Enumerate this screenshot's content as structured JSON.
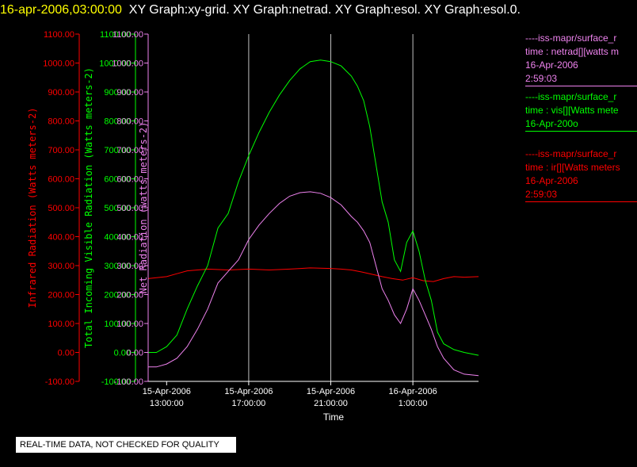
{
  "header": {
    "timestamp": "16-apr-2006,03:00:00",
    "titles": "XY Graph:xy-grid.  XY Graph:netrad.  XY Graph:esol.  XY Graph:esol.0."
  },
  "notice": "REAL-TIME DATA, NOT CHECKED FOR QUALITY",
  "colors": {
    "infrared": "#ff0000",
    "visible": "#00ff00",
    "net": "#ee82ee",
    "grid": "#c0c0c0",
    "frame": "#ffffff"
  },
  "legend": [
    {
      "color": "#ee82ee",
      "lines": [
        "----iss-mapr/surface_r",
        "time : netrad[][watts m",
        "16-Apr-2006",
        "2:59:03"
      ]
    },
    {
      "color": "#00ff00",
      "lines": [
        "----iss-mapr/surface_r",
        "time : vis[][Watts mete",
        "16-Apr-200o"
      ]
    },
    {
      "color": "#ff0000",
      "lines": [
        "----iss-mapr/surface_r",
        "time : ir[][Watts meters",
        "16-Apr-2006",
        "2:59:03"
      ]
    }
  ],
  "chart_data": {
    "type": "line",
    "xlabel": "Time",
    "x_ticks": [
      {
        "hours": 13,
        "label": [
          "15-Apr-2006",
          "13:00:00"
        ]
      },
      {
        "hours": 17,
        "label": [
          "15-Apr-2006",
          "17:00:00"
        ]
      },
      {
        "hours": 21,
        "label": [
          "15-Apr-2006",
          "21:00:00"
        ]
      },
      {
        "hours": 25,
        "label": [
          "16-Apr-2006",
          "1:00:00"
        ]
      }
    ],
    "xlim_hours": [
      12.1,
      28.2
    ],
    "grid_x_hours": [
      17,
      21,
      25
    ],
    "ylim": [
      -100,
      1100
    ],
    "y_ticks": [
      "-100.00",
      "0.00",
      "100.00",
      "200.00",
      "300.00",
      "400.00",
      "500.00",
      "600.00",
      "700.00",
      "800.00",
      "900.00",
      "1000.00",
      "1100.00"
    ],
    "axes": [
      {
        "name": "infrared",
        "label": "Infrared Radiation (Watts meters-2)",
        "color": "#ff0000"
      },
      {
        "name": "visible",
        "label": "Total Incoming Visible Radiation (Watts meters-2)",
        "color": "#00ff00"
      },
      {
        "name": "net",
        "label": "Net Radiation (watts meters-2)",
        "color": "#ee82ee"
      }
    ],
    "series": [
      {
        "key": "infrared",
        "color": "#ff0000",
        "x": [
          12.1,
          12.5,
          13.0,
          13.5,
          14.0,
          15.0,
          16.0,
          17.0,
          18.0,
          19.0,
          20.0,
          21.0,
          21.5,
          22.0,
          22.5,
          23.0,
          23.5,
          24.0,
          24.5,
          25.0,
          25.5,
          26.0,
          26.5,
          27.0,
          27.5,
          28.2
        ],
        "y": [
          255,
          258,
          262,
          272,
          282,
          288,
          285,
          288,
          285,
          288,
          292,
          290,
          288,
          285,
          278,
          270,
          262,
          255,
          250,
          258,
          248,
          245,
          255,
          262,
          260,
          262
        ]
      },
      {
        "key": "visible",
        "color": "#00ff00",
        "x": [
          12.1,
          12.5,
          13.0,
          13.5,
          14.0,
          14.5,
          15.0,
          15.5,
          16.0,
          16.5,
          17.0,
          17.5,
          18.0,
          18.5,
          19.0,
          19.5,
          20.0,
          20.5,
          21.0,
          21.5,
          22.0,
          22.3,
          22.6,
          22.9,
          23.2,
          23.5,
          23.8,
          24.1,
          24.4,
          24.7,
          25.0,
          25.3,
          25.6,
          25.9,
          26.2,
          26.5,
          27.0,
          27.5,
          28.2
        ],
        "y": [
          0,
          0,
          20,
          60,
          150,
          230,
          300,
          430,
          480,
          590,
          680,
          760,
          830,
          890,
          940,
          980,
          1005,
          1010,
          1005,
          990,
          955,
          920,
          870,
          780,
          650,
          520,
          450,
          320,
          280,
          380,
          420,
          350,
          250,
          180,
          70,
          30,
          10,
          0,
          -10
        ]
      },
      {
        "key": "net",
        "color": "#ee82ee",
        "x": [
          12.1,
          12.5,
          13.0,
          13.5,
          14.0,
          14.5,
          15.0,
          15.5,
          16.0,
          16.5,
          17.0,
          17.5,
          18.0,
          18.5,
          19.0,
          19.5,
          20.0,
          20.5,
          21.0,
          21.5,
          22.0,
          22.3,
          22.6,
          22.9,
          23.2,
          23.5,
          23.8,
          24.1,
          24.4,
          24.7,
          25.0,
          25.3,
          25.6,
          25.9,
          26.2,
          26.5,
          27.0,
          27.5,
          28.2
        ],
        "y": [
          -50,
          -50,
          -40,
          -20,
          20,
          80,
          150,
          240,
          280,
          320,
          390,
          440,
          480,
          515,
          540,
          552,
          555,
          550,
          535,
          510,
          470,
          450,
          420,
          380,
          300,
          220,
          180,
          130,
          100,
          150,
          220,
          180,
          130,
          80,
          20,
          -20,
          -60,
          -75,
          -80
        ]
      }
    ]
  }
}
